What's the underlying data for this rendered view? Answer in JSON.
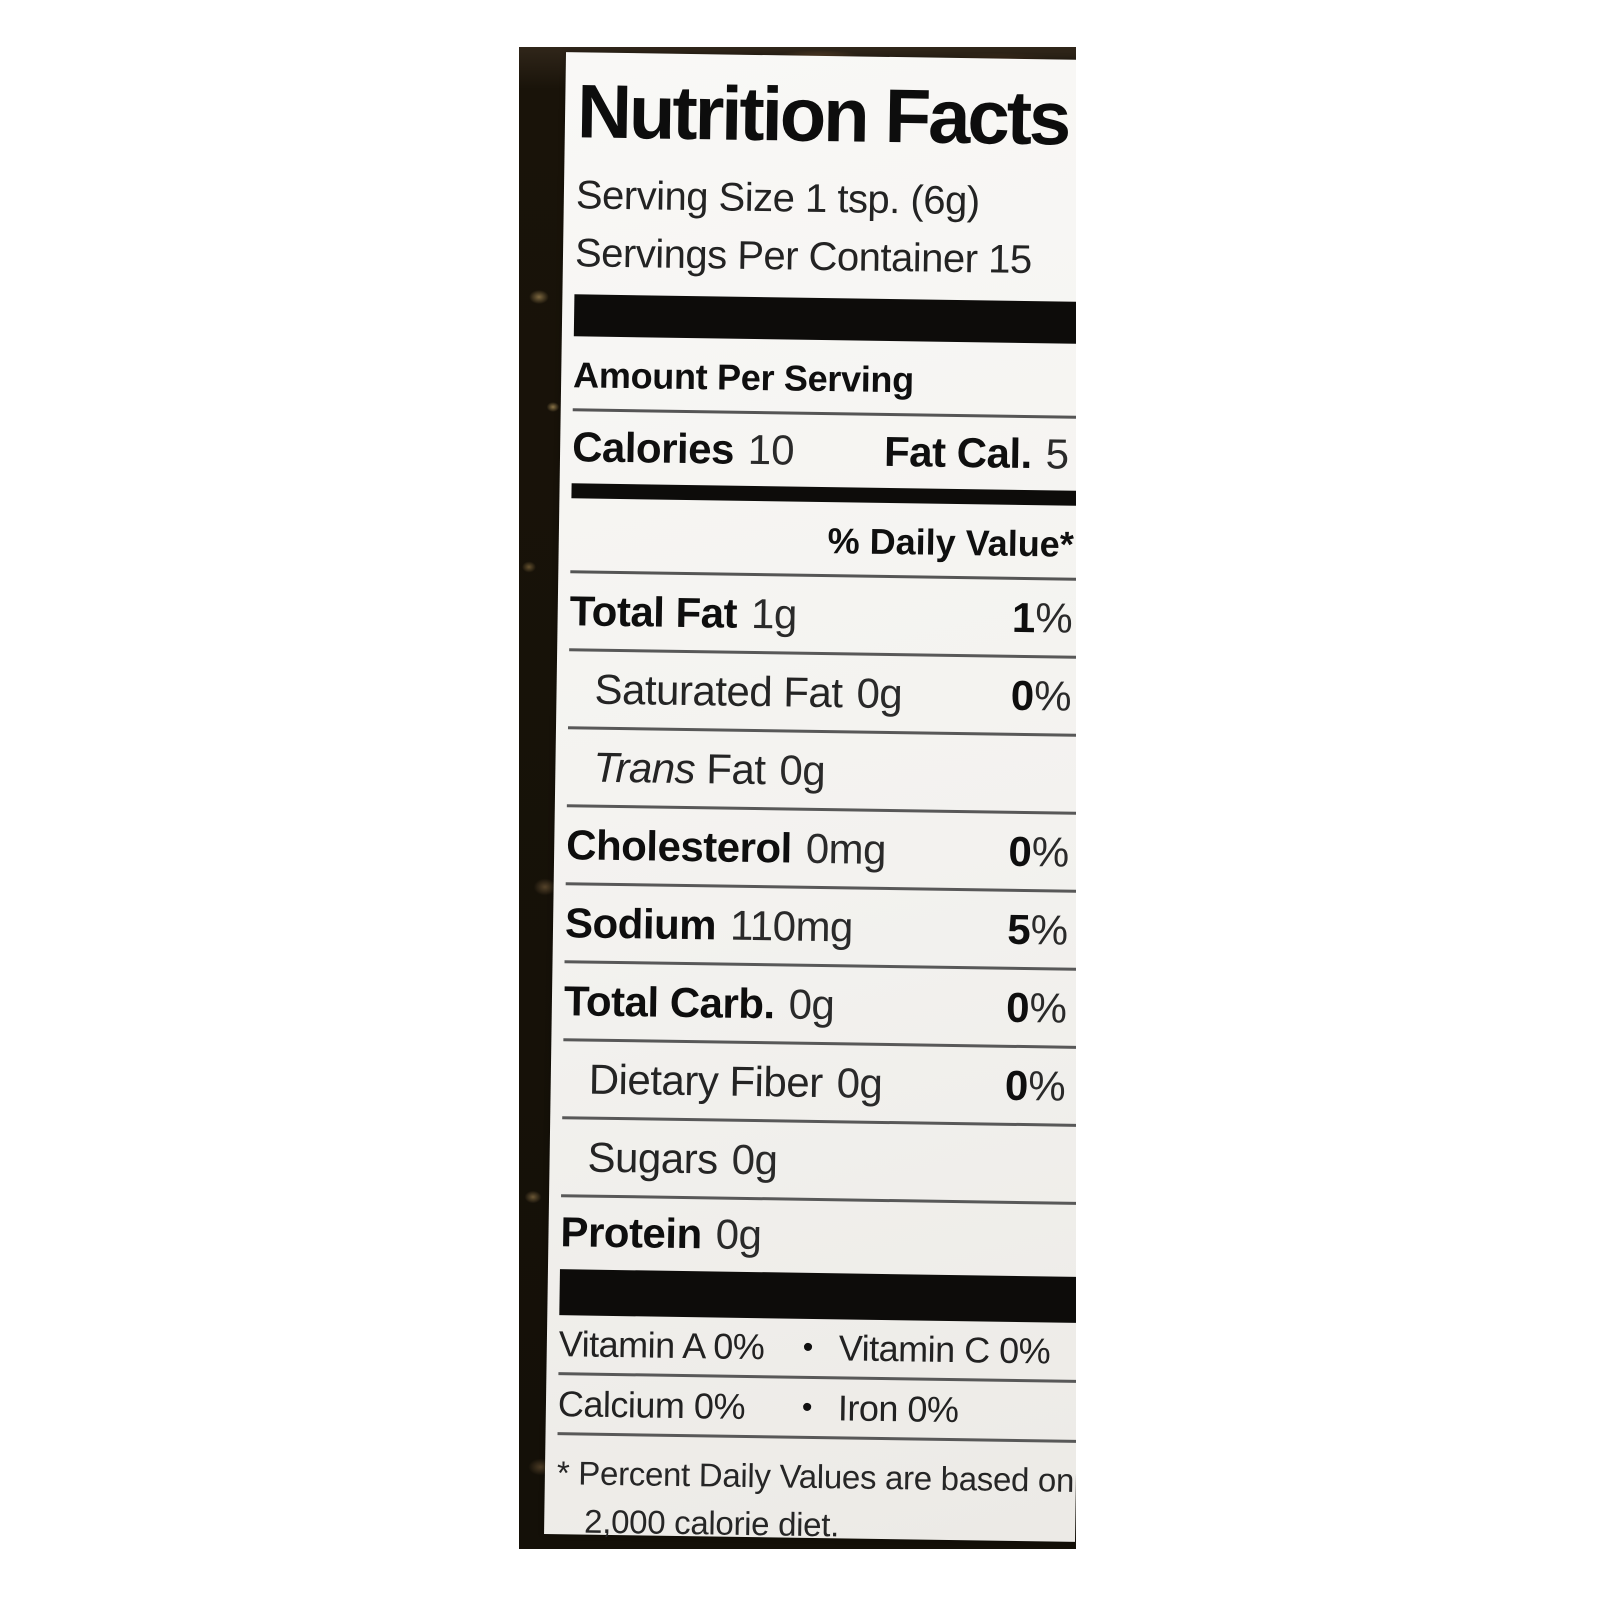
{
  "label": {
    "title": "Nutrition Facts",
    "serving_size": "Serving Size 1 tsp. (6g)",
    "servings_per_container": "Servings Per Container 15",
    "amount_per_serving": "Amount Per Serving",
    "calories": {
      "label": "Calories",
      "value": "10"
    },
    "fat_calories": {
      "label": "Fat Cal.",
      "value": "5"
    },
    "daily_value_header": "% Daily Value*",
    "percent_suffix": "%",
    "bullet": "•",
    "nutrients": [
      {
        "name": "Total Fat",
        "amount": "1g",
        "dv": "1",
        "bold": true,
        "indent": false,
        "italic_name": ""
      },
      {
        "name": "Saturated Fat",
        "amount": "0g",
        "dv": "0",
        "bold": false,
        "indent": true,
        "italic_name": ""
      },
      {
        "name": "Fat",
        "amount": "0g",
        "dv": "",
        "bold": false,
        "indent": true,
        "italic_name": "Trans"
      },
      {
        "name": "Cholesterol",
        "amount": "0mg",
        "dv": "0",
        "bold": true,
        "indent": false,
        "italic_name": ""
      },
      {
        "name": "Sodium",
        "amount": "110mg",
        "dv": "5",
        "bold": true,
        "indent": false,
        "italic_name": ""
      },
      {
        "name": "Total Carb.",
        "amount": "0g",
        "dv": "0",
        "bold": true,
        "indent": false,
        "italic_name": ""
      },
      {
        "name": "Dietary Fiber",
        "amount": "0g",
        "dv": "0",
        "bold": false,
        "indent": true,
        "italic_name": ""
      },
      {
        "name": "Sugars",
        "amount": "0g",
        "dv": "",
        "bold": false,
        "indent": true,
        "italic_name": ""
      },
      {
        "name": "Protein",
        "amount": "0g",
        "dv": "",
        "bold": true,
        "indent": false,
        "italic_name": ""
      }
    ],
    "vitamins": [
      {
        "left": "Vitamin A 0%",
        "right": "Vitamin C 0%"
      },
      {
        "left": "Calcium 0%",
        "right": "Iron 0%"
      }
    ],
    "footnote": {
      "line1": "* Percent Daily Values are based on a",
      "line2": "2,000 calorie diet."
    }
  }
}
